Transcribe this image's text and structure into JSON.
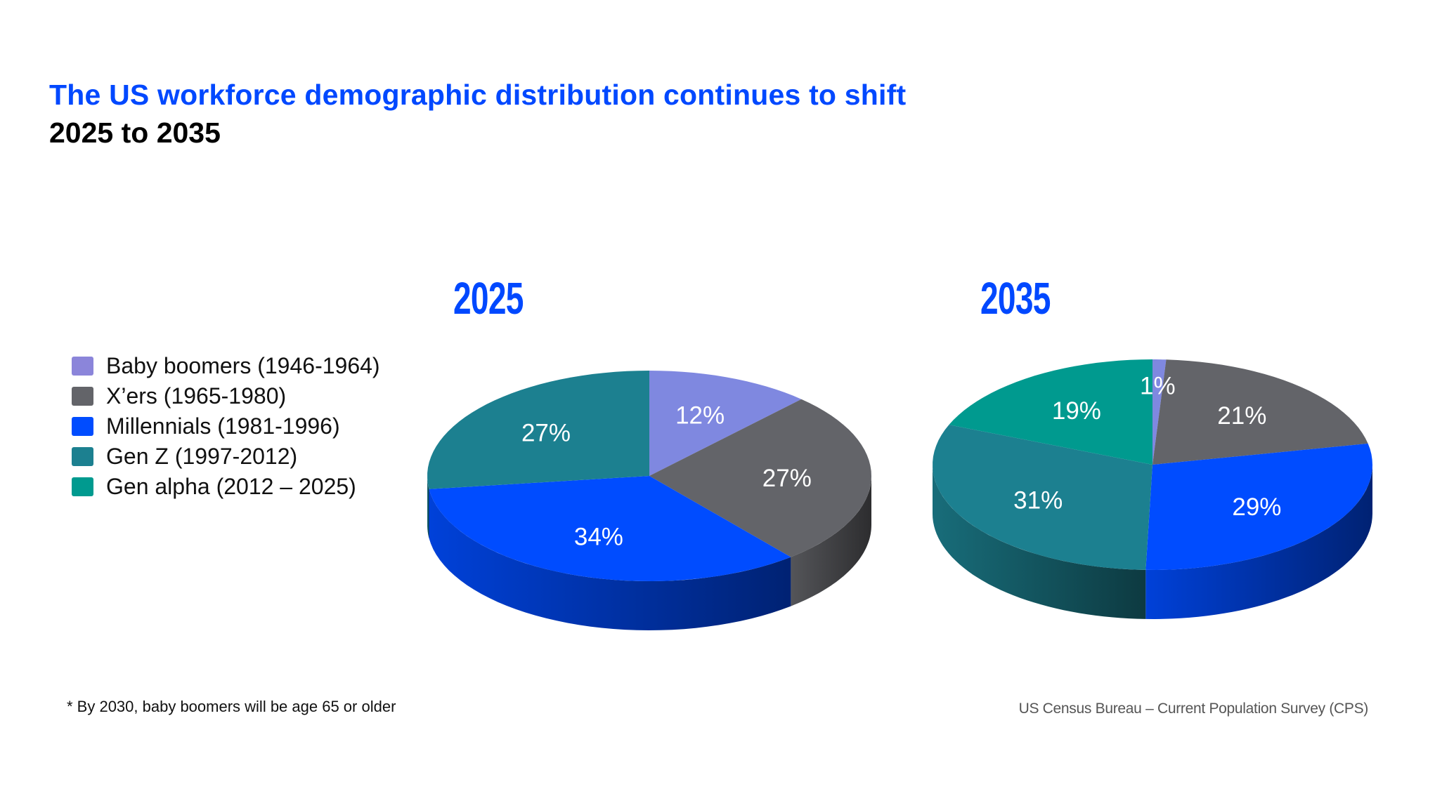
{
  "header": {
    "title": "The US workforce demographic distribution continues to shift",
    "subtitle": "2025 to 2035"
  },
  "legend": [
    {
      "label": "Baby boomers (1946-1964)",
      "color": "#8b85da"
    },
    {
      "label": "X’ers (1965-1980)",
      "color": "#636469"
    },
    {
      "label": "Millennials (1981-1996)",
      "color": "#004cff"
    },
    {
      "label": "Gen Z (1997-2012)",
      "color": "#1c8090"
    },
    {
      "label": "Gen alpha (2012 – 2025)",
      "color": "#009a8f"
    }
  ],
  "footnote": "* By 2030, baby boomers will be age 65 or older",
  "source": "US Census Bureau – Current Population Survey (CPS)",
  "chart_data": [
    {
      "type": "pie",
      "title": "2025",
      "style": "3d",
      "categories": [
        "Baby boomers (1946-1964)",
        "X’ers (1965-1980)",
        "Millennials (1981-1996)",
        "Gen Z (1997-2012)",
        "Gen alpha (2012 – 2025)"
      ],
      "values": [
        12,
        27,
        34,
        27,
        0
      ],
      "labels": [
        "12%",
        "27%",
        "34%",
        "27%",
        ""
      ],
      "colors": [
        "#7f88e0",
        "#636469",
        "#004cff",
        "#1c8090",
        "#009a8f"
      ],
      "start": "top",
      "direction": "clockwise",
      "legend_position": "left"
    },
    {
      "type": "pie",
      "title": "2035",
      "style": "3d",
      "categories": [
        "Baby boomers (1946-1964)",
        "X’ers (1965-1980)",
        "Millennials (1981-1996)",
        "Gen Z (1997-2012)",
        "Gen alpha (2012 – 2025)"
      ],
      "values": [
        1,
        21,
        29,
        31,
        19
      ],
      "labels": [
        "1%",
        "21%",
        "29%",
        "31%",
        "19%"
      ],
      "colors": [
        "#7f88e0",
        "#636469",
        "#004cff",
        "#1c8090",
        "#009a8f"
      ],
      "start": "top",
      "direction": "clockwise",
      "legend_position": "left"
    }
  ]
}
